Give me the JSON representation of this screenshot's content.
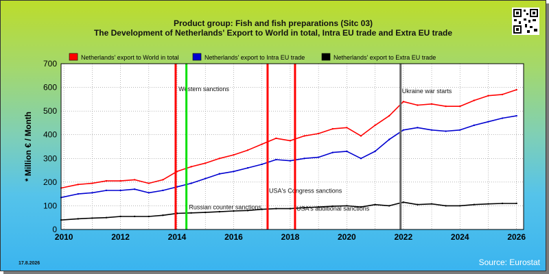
{
  "page": {
    "title_line1": "Product group: Fish and fish preparations (Sitc 03)",
    "title_line2": "The Development of Netherlands' Export to World in total, Intra EU trade and Extra EU trade",
    "source": "Source: Eurostat",
    "date": "17.8.2026",
    "qr_icon": "qr-code-icon"
  },
  "chart_data": {
    "type": "line",
    "ylabel": "* Million € / Month",
    "xlabel": "",
    "xlim": [
      2009.9,
      2026.25
    ],
    "ylim": [
      0,
      700
    ],
    "x_ticks": [
      2010,
      2012,
      2014,
      2016,
      2018,
      2020,
      2022,
      2024,
      2026
    ],
    "y_ticks": [
      0,
      100,
      200,
      300,
      400,
      500,
      600,
      700
    ],
    "grid": true,
    "legend_position": "top",
    "series": [
      {
        "name": "Netherlands' export to World in total",
        "color": "#ff0000",
        "x": [
          2009.9,
          2010.5,
          2011.0,
          2011.5,
          2012.0,
          2012.5,
          2013.0,
          2013.5,
          2014.0,
          2014.5,
          2015.0,
          2015.5,
          2016.0,
          2016.5,
          2017.0,
          2017.5,
          2018.0,
          2018.5,
          2019.0,
          2019.5,
          2020.0,
          2020.5,
          2021.0,
          2021.5,
          2022.0,
          2022.5,
          2023.0,
          2023.5,
          2024.0,
          2024.5,
          2025.0,
          2025.5,
          2026.0
        ],
        "values": [
          175,
          190,
          195,
          205,
          205,
          210,
          195,
          210,
          245,
          265,
          280,
          300,
          315,
          335,
          360,
          385,
          375,
          395,
          405,
          425,
          430,
          395,
          440,
          480,
          540,
          525,
          530,
          520,
          520,
          545,
          565,
          570,
          590
        ]
      },
      {
        "name": "Netherlands' export to Intra EU trade",
        "color": "#0000d0",
        "x": [
          2009.9,
          2010.5,
          2011.0,
          2011.5,
          2012.0,
          2012.5,
          2013.0,
          2013.5,
          2014.0,
          2014.5,
          2015.0,
          2015.5,
          2016.0,
          2016.5,
          2017.0,
          2017.5,
          2018.0,
          2018.5,
          2019.0,
          2019.5,
          2020.0,
          2020.5,
          2021.0,
          2021.5,
          2022.0,
          2022.5,
          2023.0,
          2023.5,
          2024.0,
          2024.5,
          2025.0,
          2025.5,
          2026.0
        ],
        "values": [
          135,
          150,
          155,
          165,
          165,
          170,
          155,
          165,
          180,
          195,
          215,
          235,
          245,
          260,
          275,
          295,
          290,
          300,
          305,
          325,
          330,
          300,
          330,
          380,
          420,
          430,
          420,
          415,
          420,
          440,
          455,
          470,
          480
        ]
      },
      {
        "name": "Netherlands' export to Extra EU trade",
        "color": "#000000",
        "x": [
          2009.9,
          2010.5,
          2011.0,
          2011.5,
          2012.0,
          2012.5,
          2013.0,
          2013.5,
          2014.0,
          2014.5,
          2015.0,
          2015.5,
          2016.0,
          2016.5,
          2017.0,
          2017.5,
          2018.0,
          2018.5,
          2019.0,
          2019.5,
          2020.0,
          2020.5,
          2021.0,
          2021.5,
          2022.0,
          2022.5,
          2023.0,
          2023.5,
          2024.0,
          2024.5,
          2025.0,
          2025.5,
          2026.0
        ],
        "values": [
          40,
          45,
          48,
          50,
          55,
          55,
          55,
          60,
          68,
          70,
          72,
          75,
          78,
          80,
          85,
          88,
          88,
          92,
          95,
          98,
          100,
          95,
          105,
          100,
          115,
          105,
          108,
          100,
          100,
          105,
          108,
          110,
          110
        ]
      }
    ],
    "annotations": [
      {
        "x": 2013.95,
        "color": "#ff0000",
        "label": "Western sanctions",
        "label_x": 2014.05,
        "label_y": 585
      },
      {
        "x": 2014.33,
        "color": "#00e000",
        "label": "Russian counter sanctions",
        "label_x": 2014.42,
        "label_y": 85
      },
      {
        "x": 2017.2,
        "color": "#ff0000",
        "label": "USA's Congress sanctions",
        "label_x": 2017.25,
        "label_y": 155
      },
      {
        "x": 2018.17,
        "color": "#ff0000",
        "label": "USA's additional sanctions",
        "label_x": 2018.22,
        "label_y": 80
      },
      {
        "x": 2021.9,
        "color": "#666666",
        "label": "Ukraine war starts",
        "label_x": 2021.95,
        "label_y": 575
      }
    ]
  }
}
